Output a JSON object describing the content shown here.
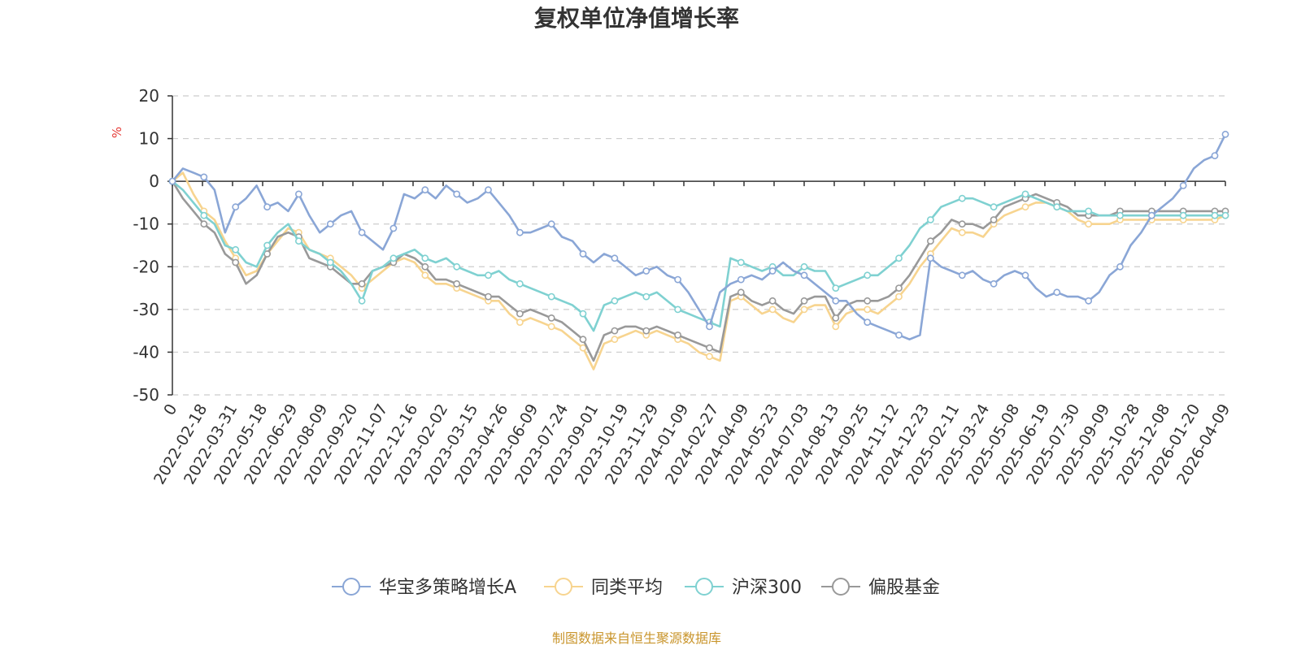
{
  "chart_data": {
    "type": "line",
    "title": "复权单位净值增长率",
    "ylabel": "%",
    "xlabel": "",
    "ylim": [
      -50,
      20
    ],
    "yticks": [
      20,
      10,
      0,
      -10,
      -20,
      -30,
      -40,
      -50
    ],
    "grid": true,
    "legend_position": "bottom",
    "source": "制图数据来自恒生聚源数据库",
    "x_ticks": [
      "0",
      "2022-02-18",
      "2022-03-31",
      "2022-05-18",
      "2022-06-29",
      "2022-08-09",
      "2022-09-20",
      "2022-11-07",
      "2022-12-16",
      "2023-02-02",
      "2023-03-15",
      "2023-04-26",
      "2023-06-09",
      "2023-07-24",
      "2023-09-01",
      "2023-10-19",
      "2023-11-29",
      "2024-01-09",
      "2024-02-27",
      "2024-04-09",
      "2024-05-23",
      "2024-07-03",
      "2024-08-13",
      "2024-09-25",
      "2024-11-12",
      "2024-12-23",
      "2025-02-11",
      "2025-03-24",
      "2025-05-08",
      "2025-06-19",
      "2025-07-30",
      "2025-09-09",
      "2025-10-28",
      "2025-12-08",
      "2026-01-20",
      "2026-04-09"
    ],
    "x": [
      0,
      0.01,
      0.02,
      0.03,
      0.04,
      0.05,
      0.06,
      0.07,
      0.08,
      0.09,
      0.1,
      0.11,
      0.12,
      0.13,
      0.14,
      0.15,
      0.16,
      0.17,
      0.18,
      0.19,
      0.2,
      0.21,
      0.22,
      0.23,
      0.24,
      0.25,
      0.26,
      0.27,
      0.28,
      0.29,
      0.3,
      0.31,
      0.32,
      0.33,
      0.34,
      0.35,
      0.36,
      0.37,
      0.38,
      0.39,
      0.4,
      0.41,
      0.42,
      0.43,
      0.44,
      0.45,
      0.46,
      0.47,
      0.48,
      0.49,
      0.5,
      0.51,
      0.52,
      0.53,
      0.54,
      0.55,
      0.56,
      0.57,
      0.58,
      0.59,
      0.6,
      0.61,
      0.62,
      0.63,
      0.64,
      0.65,
      0.66,
      0.67,
      0.68,
      0.69,
      0.7,
      0.71,
      0.72,
      0.73,
      0.74,
      0.75,
      0.76,
      0.77,
      0.78,
      0.79,
      0.8,
      0.81,
      0.82,
      0.83,
      0.84,
      0.85,
      0.86,
      0.87,
      0.88,
      0.89,
      0.9,
      0.91,
      0.92,
      0.93,
      0.94,
      0.95,
      0.96,
      0.97,
      0.98,
      0.99,
      1.0
    ],
    "series": [
      {
        "name": "华宝多策略增长A",
        "color": "#8aa6d6",
        "values": [
          0,
          3,
          2,
          1,
          -2,
          -12,
          -6,
          -4,
          -1,
          -6,
          -5,
          -7,
          -3,
          -8,
          -12,
          -10,
          -8,
          -7,
          -12,
          -14,
          -16,
          -11,
          -3,
          -4,
          -2,
          -4,
          -1,
          -3,
          -5,
          -4,
          -2,
          -5,
          -8,
          -12,
          -12,
          -11,
          -10,
          -13,
          -14,
          -17,
          -19,
          -17,
          -18,
          -20,
          -22,
          -21,
          -20,
          -22,
          -23,
          -26,
          -30,
          -34,
          -26,
          -24,
          -23,
          -22,
          -23,
          -21,
          -19,
          -21,
          -22,
          -24,
          -26,
          -28,
          -28,
          -31,
          -33,
          -34,
          -35,
          -36,
          -37,
          -36,
          -18,
          -20,
          -21,
          -22,
          -21,
          -23,
          -24,
          -22,
          -21,
          -22,
          -25,
          -27,
          -26,
          -27,
          -27,
          -28,
          -26,
          -22,
          -20,
          -15,
          -12,
          -8,
          -6,
          -4,
          -1,
          3,
          5,
          6,
          11
        ]
      },
      {
        "name": "同类平均",
        "color": "#f7d48f",
        "values": [
          0,
          2,
          -3,
          -7,
          -9,
          -14,
          -18,
          -22,
          -21,
          -17,
          -14,
          -11,
          -12,
          -16,
          -17,
          -18,
          -20,
          -22,
          -25,
          -23,
          -21,
          -19,
          -18,
          -19,
          -22,
          -24,
          -24,
          -25,
          -26,
          -27,
          -28,
          -28,
          -31,
          -33,
          -32,
          -33,
          -34,
          -35,
          -37,
          -39,
          -44,
          -38,
          -37,
          -36,
          -35,
          -36,
          -35,
          -36,
          -37,
          -38,
          -40,
          -41,
          -42,
          -28,
          -27,
          -29,
          -31,
          -30,
          -32,
          -33,
          -30,
          -29,
          -29,
          -34,
          -31,
          -30,
          -30,
          -31,
          -29,
          -27,
          -24,
          -20,
          -17,
          -14,
          -11,
          -12,
          -12,
          -13,
          -10,
          -8,
          -7,
          -6,
          -5,
          -5,
          -6,
          -7,
          -9,
          -10,
          -10,
          -10,
          -9,
          -9,
          -9,
          -9,
          -9,
          -9,
          -9,
          -9,
          -9,
          -9,
          -8
        ]
      },
      {
        "name": "沪深300",
        "color": "#7fd1d1",
        "values": [
          0,
          -2,
          -5,
          -8,
          -10,
          -15,
          -16,
          -19,
          -20,
          -15,
          -12,
          -10,
          -14,
          -16,
          -17,
          -19,
          -21,
          -24,
          -28,
          -21,
          -20,
          -18,
          -17,
          -16,
          -18,
          -19,
          -18,
          -20,
          -21,
          -22,
          -22,
          -21,
          -23,
          -24,
          -25,
          -26,
          -27,
          -28,
          -29,
          -31,
          -35,
          -29,
          -28,
          -27,
          -26,
          -27,
          -26,
          -28,
          -30,
          -31,
          -32,
          -33,
          -34,
          -18,
          -19,
          -20,
          -21,
          -20,
          -22,
          -22,
          -20,
          -21,
          -21,
          -25,
          -24,
          -23,
          -22,
          -22,
          -20,
          -18,
          -15,
          -11,
          -9,
          -6,
          -5,
          -4,
          -4,
          -5,
          -6,
          -5,
          -4,
          -3,
          -4,
          -5,
          -6,
          -7,
          -7,
          -7,
          -8,
          -8,
          -8,
          -8,
          -8,
          -8,
          -8,
          -8,
          -8,
          -8,
          -8,
          -8,
          -8
        ]
      },
      {
        "name": "偏股基金",
        "color": "#999999",
        "values": [
          0,
          -4,
          -7,
          -10,
          -12,
          -17,
          -19,
          -24,
          -22,
          -17,
          -13,
          -12,
          -13,
          -18,
          -19,
          -20,
          -22,
          -24,
          -24,
          -21,
          -20,
          -19,
          -17,
          -18,
          -20,
          -23,
          -23,
          -24,
          -25,
          -26,
          -27,
          -27,
          -29,
          -31,
          -30,
          -31,
          -32,
          -33,
          -35,
          -37,
          -42,
          -36,
          -35,
          -34,
          -34,
          -35,
          -34,
          -35,
          -36,
          -37,
          -38,
          -39,
          -40,
          -27,
          -26,
          -28,
          -29,
          -28,
          -30,
          -31,
          -28,
          -27,
          -27,
          -32,
          -29,
          -28,
          -28,
          -28,
          -27,
          -25,
          -22,
          -18,
          -14,
          -12,
          -9,
          -10,
          -10,
          -11,
          -9,
          -6,
          -5,
          -4,
          -3,
          -4,
          -5,
          -6,
          -8,
          -8,
          -8,
          -8,
          -7,
          -7,
          -7,
          -7,
          -7,
          -7,
          -7,
          -7,
          -7,
          -7,
          -7
        ]
      }
    ]
  }
}
